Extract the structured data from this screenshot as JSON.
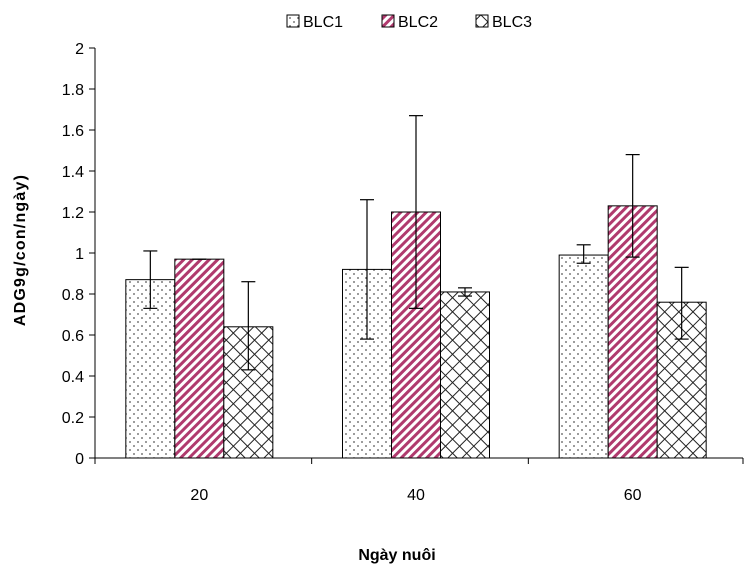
{
  "chart_data": {
    "type": "bar",
    "title": "",
    "xlabel": "Ngày nuôi",
    "ylabel": "ADG9g/con/ngày)",
    "categories": [
      "20",
      "40",
      "60"
    ],
    "ylim": [
      0,
      2
    ],
    "yticks": [
      "0",
      "0.2",
      "0.4",
      "0.6",
      "0.8",
      "1",
      "1.2",
      "1.4",
      "1.6",
      "1.8",
      "2"
    ],
    "grid": false,
    "legend_position": "top",
    "series": [
      {
        "name": "BLC1",
        "pattern": "dots",
        "values": [
          0.87,
          0.92,
          0.99
        ],
        "error_low": [
          0.73,
          0.58,
          0.95
        ],
        "error_high": [
          1.01,
          1.26,
          1.04
        ]
      },
      {
        "name": "BLC2",
        "pattern": "diagonal-pink",
        "values": [
          0.97,
          1.2,
          1.23
        ],
        "error_low": [
          0.97,
          0.73,
          0.98
        ],
        "error_high": [
          0.97,
          1.67,
          1.48
        ]
      },
      {
        "name": "BLC3",
        "pattern": "crosshatch",
        "values": [
          0.64,
          0.81,
          0.76
        ],
        "error_low": [
          0.43,
          0.79,
          0.58
        ],
        "error_high": [
          0.86,
          0.83,
          0.93
        ]
      }
    ]
  }
}
